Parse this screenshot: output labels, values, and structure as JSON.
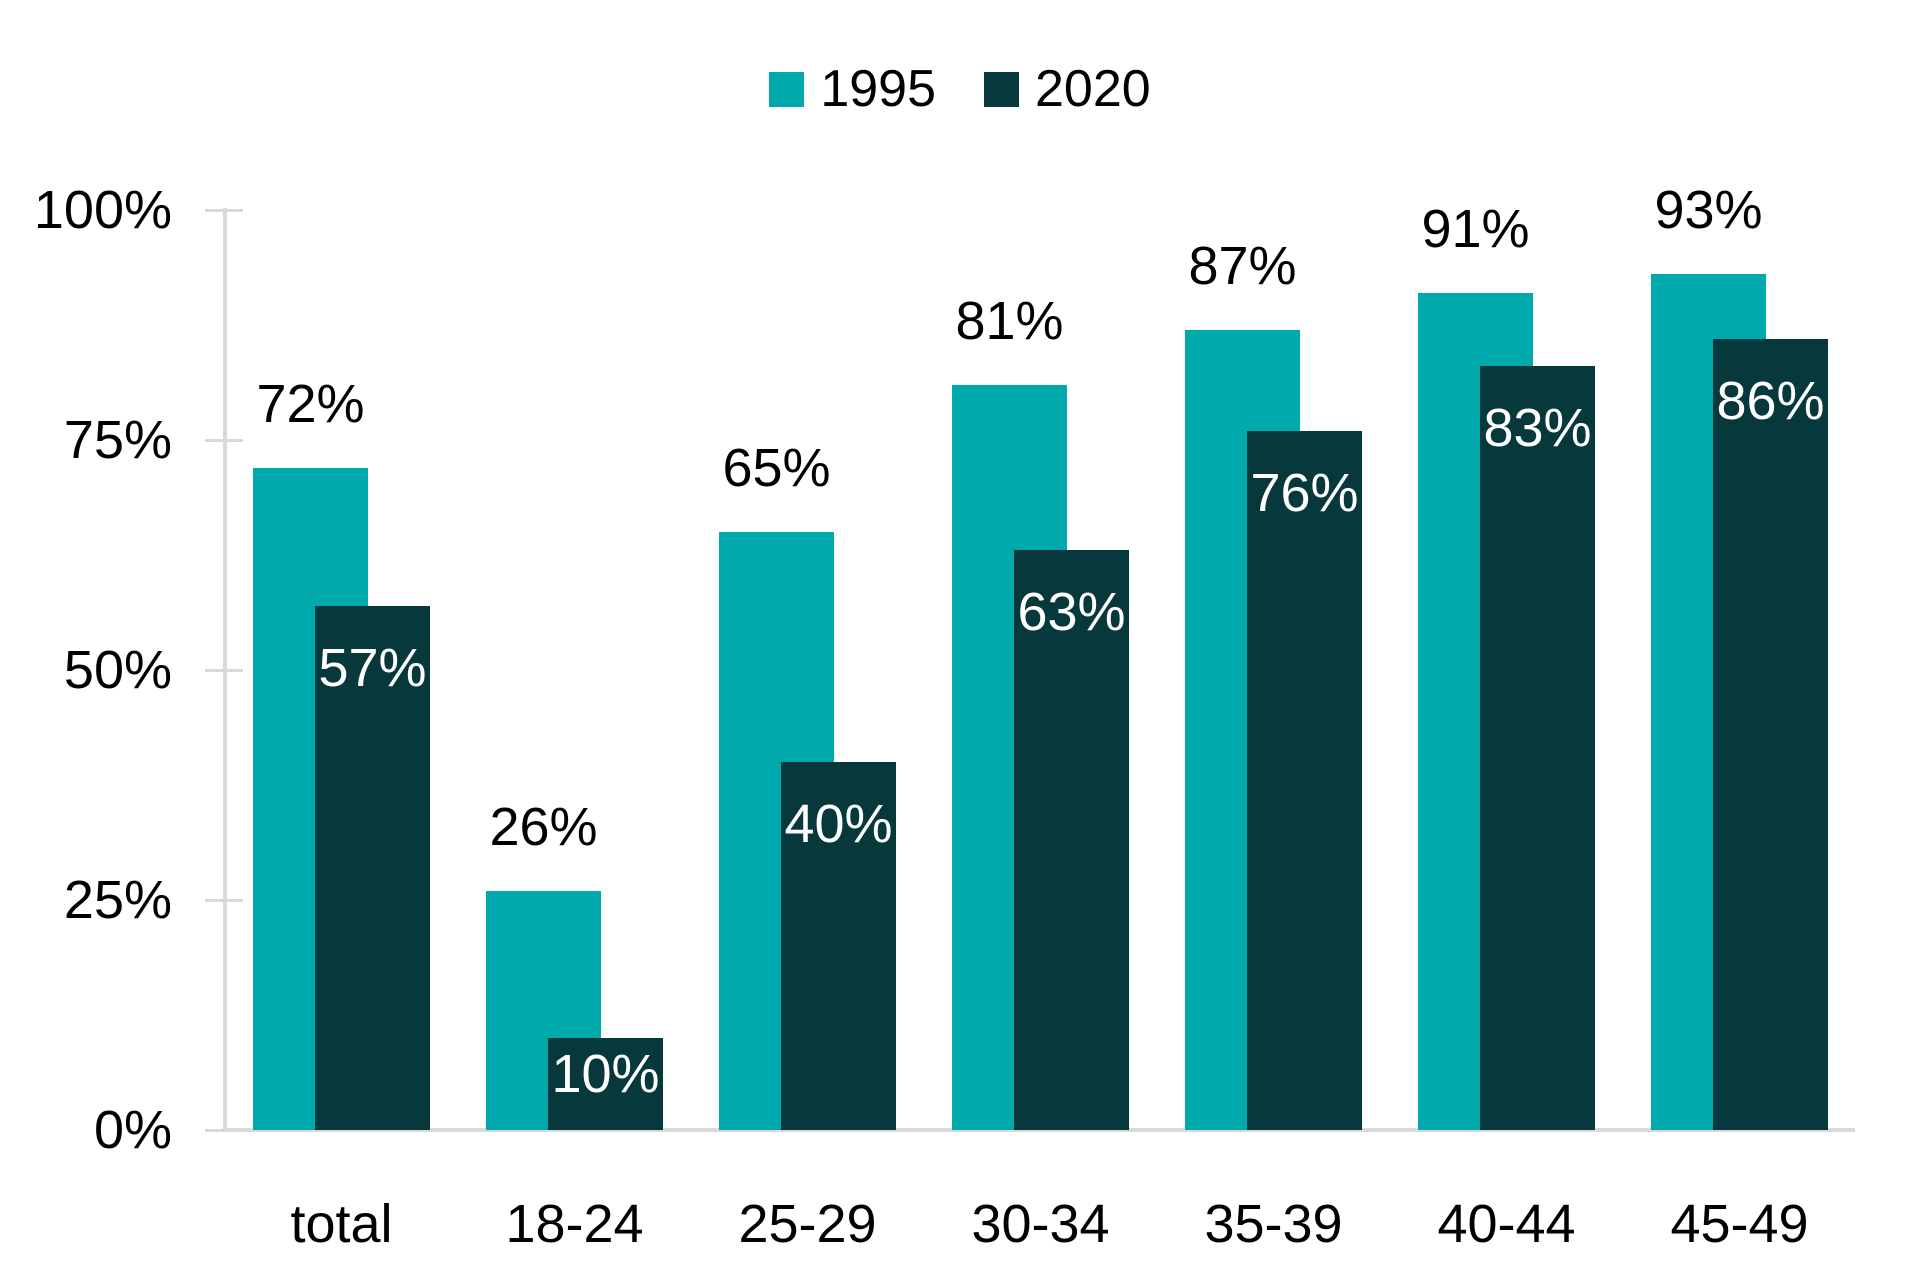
{
  "chart_data": {
    "type": "bar",
    "subtype": "grouped-overlapping-columns",
    "categories": [
      "total",
      "18-24",
      "25-29",
      "30-34",
      "35-39",
      "40-44",
      "45-49"
    ],
    "series": [
      {
        "name": "1995",
        "color": "#00A9AC",
        "label_color": "#000000",
        "label_position": "above",
        "values": [
          72,
          26,
          65,
          81,
          87,
          91,
          93
        ]
      },
      {
        "name": "2020",
        "color": "#07383C",
        "label_color": "#FFFFFF",
        "label_position": "inside-top",
        "values": [
          57,
          10,
          40,
          63,
          76,
          83,
          86
        ]
      }
    ],
    "value_suffix": "%",
    "ylim": [
      0,
      100
    ],
    "yticks": [
      0,
      25,
      50,
      75,
      100
    ],
    "ytick_labels": [
      "0%",
      "25%",
      "50%",
      "75%",
      "100%"
    ],
    "xlabel": "",
    "ylabel": "",
    "grid": false,
    "legend_position": "top-center",
    "axis_color": "#D9D9D9",
    "text_color": "#000000",
    "background_color": "#FFFFFF"
  }
}
